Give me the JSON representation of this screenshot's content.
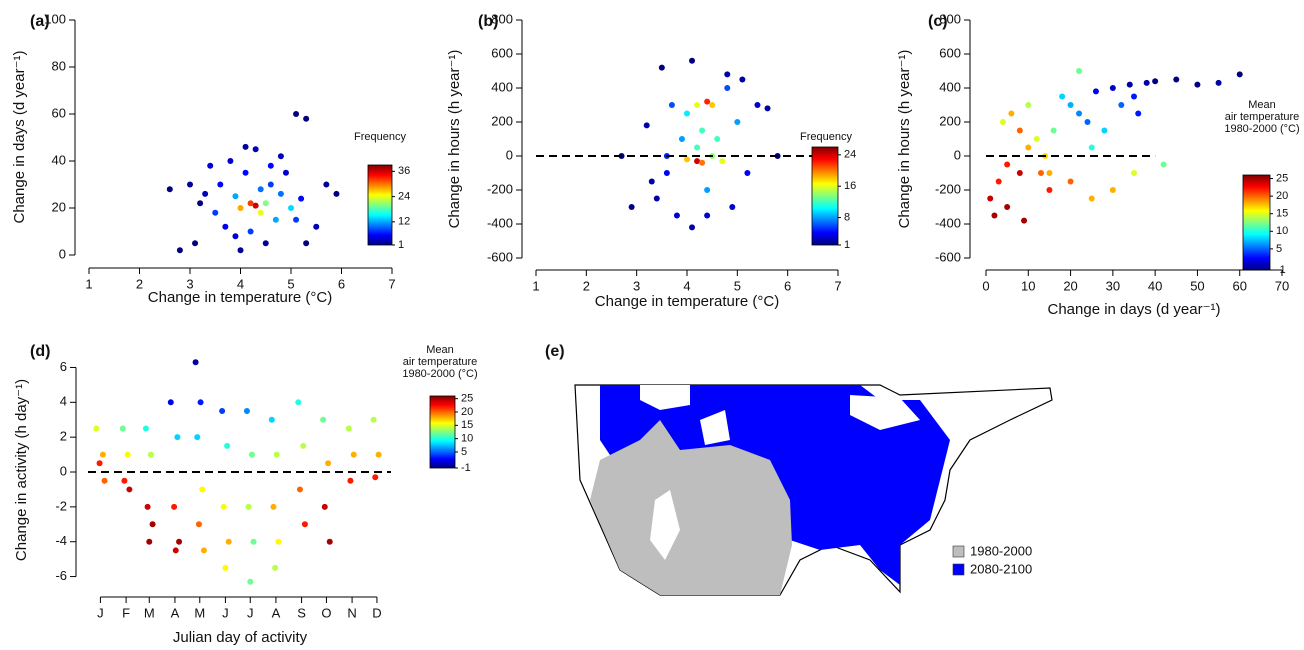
{
  "chart_data": [
    {
      "type": "scatter",
      "label": "(a)",
      "xlabel": "Change in temperature (°C)",
      "ylabel": "Change in days (d year⁻¹)",
      "xlim": [
        1,
        7
      ],
      "xticks": [
        1,
        2,
        3,
        4,
        5,
        6,
        7
      ],
      "ylim": [
        0,
        100
      ],
      "yticks": [
        0,
        20,
        40,
        60,
        80,
        100
      ],
      "x": [
        2.6,
        2.8,
        3.0,
        3.1,
        3.3,
        3.4,
        3.5,
        3.6,
        3.7,
        3.8,
        3.9,
        4.0,
        4.0,
        4.1,
        4.2,
        4.2,
        4.3,
        4.3,
        4.4,
        4.4,
        4.5,
        4.5,
        4.6,
        4.7,
        4.8,
        4.9,
        5.0,
        5.1,
        5.2,
        5.3,
        5.5,
        5.7,
        5.9,
        4.1,
        3.9,
        4.6,
        5.1,
        3.2,
        4.8,
        5.3
      ],
      "values": [
        28,
        2,
        30,
        5,
        26,
        38,
        18,
        30,
        12,
        40,
        25,
        20,
        2,
        35,
        22,
        10,
        21,
        45,
        18,
        28,
        22,
        5,
        30,
        15,
        26,
        35,
        20,
        60,
        24,
        58,
        12,
        30,
        26,
        46,
        8,
        38,
        15,
        22,
        42,
        5
      ],
      "color_values": [
        1,
        1,
        2,
        1,
        3,
        4,
        8,
        6,
        5,
        4,
        12,
        28,
        2,
        6,
        32,
        8,
        36,
        3,
        24,
        10,
        20,
        2,
        8,
        12,
        10,
        4,
        14,
        1,
        6,
        1,
        3,
        2,
        1,
        2,
        4,
        6,
        8,
        1,
        3,
        1
      ],
      "colorbar": {
        "title": [
          "Frequency"
        ],
        "lim": [
          1,
          39
        ],
        "ticks": [
          1,
          12,
          24,
          36
        ]
      }
    },
    {
      "type": "scatter",
      "label": "(b)",
      "xlabel": "Change in temperature (°C)",
      "ylabel": "Change in hours (h year⁻¹)",
      "xlim": [
        1,
        7
      ],
      "xticks": [
        1,
        2,
        3,
        4,
        5,
        6,
        7
      ],
      "ylim": [
        -600,
        800
      ],
      "yticks": [
        -600,
        -400,
        -200,
        0,
        200,
        400,
        600,
        800
      ],
      "hline": 0,
      "x": [
        2.7,
        2.9,
        3.2,
        3.4,
        3.5,
        3.6,
        3.7,
        3.8,
        3.9,
        4.0,
        4.1,
        4.1,
        4.2,
        4.2,
        4.3,
        4.3,
        4.4,
        4.4,
        4.5,
        4.5,
        4.6,
        4.7,
        4.8,
        4.9,
        5.0,
        5.1,
        5.2,
        5.4,
        5.6,
        5.8,
        3.3,
        4.0,
        4.4,
        4.8,
        3.6,
        4.2
      ],
      "values": [
        0,
        -300,
        180,
        -250,
        520,
        -100,
        300,
        -350,
        100,
        -20,
        560,
        -420,
        300,
        -30,
        -40,
        150,
        320,
        -200,
        300,
        0,
        100,
        -30,
        400,
        -300,
        200,
        450,
        -100,
        300,
        280,
        0,
        -150,
        250,
        -350,
        480,
        0,
        50
      ],
      "color_values": [
        1,
        1,
        2,
        2,
        1,
        4,
        6,
        3,
        8,
        18,
        1,
        2,
        16,
        24,
        20,
        12,
        22,
        8,
        18,
        14,
        12,
        16,
        6,
        3,
        8,
        2,
        4,
        3,
        2,
        1,
        2,
        10,
        3,
        2,
        5,
        12
      ],
      "colorbar": {
        "title": [
          "Frequency"
        ],
        "lim": [
          1,
          26
        ],
        "ticks": [
          1,
          8,
          16,
          24
        ]
      }
    },
    {
      "type": "scatter",
      "label": "(c)",
      "xlabel": "Change in days (d year⁻¹)",
      "ylabel": "Change in hours (h year⁻¹)",
      "xlim": [
        0,
        70
      ],
      "xticks": [
        0,
        10,
        20,
        30,
        40,
        50,
        60,
        70
      ],
      "ylim": [
        -600,
        800
      ],
      "yticks": [
        -600,
        -400,
        -200,
        0,
        200,
        400,
        600,
        800
      ],
      "hline": 0,
      "x": [
        1,
        2,
        3,
        4,
        5,
        6,
        8,
        9,
        10,
        10,
        12,
        13,
        14,
        15,
        16,
        18,
        20,
        20,
        22,
        24,
        25,
        26,
        28,
        30,
        30,
        32,
        34,
        35,
        36,
        38,
        40,
        42,
        45,
        50,
        55,
        60,
        5,
        8,
        15,
        25,
        35,
        22
      ],
      "values": [
        -250,
        -350,
        -150,
        200,
        -300,
        250,
        -100,
        -380,
        300,
        50,
        100,
        -100,
        0,
        -200,
        150,
        350,
        -150,
        300,
        250,
        200,
        -250,
        380,
        150,
        -200,
        400,
        300,
        420,
        -100,
        250,
        430,
        440,
        -50,
        450,
        420,
        430,
        480,
        -50,
        150,
        -100,
        50,
        350,
        500
      ],
      "color_values": [
        24,
        25,
        22,
        15,
        25,
        18,
        24,
        25,
        14,
        18,
        15,
        20,
        17,
        22,
        12,
        8,
        20,
        7,
        6,
        5,
        18,
        2,
        8,
        18,
        1,
        5,
        0,
        15,
        3,
        0,
        -1,
        12,
        -1,
        -1,
        0,
        -1,
        22,
        20,
        18,
        10,
        3,
        12
      ],
      "colorbar": {
        "title": [
          "Mean",
          "air temperature",
          "1980-2000 (°C)"
        ],
        "lim": [
          -1,
          26
        ],
        "ticks": [
          -1,
          5,
          10,
          15,
          20,
          25
        ]
      }
    },
    {
      "type": "scatter",
      "label": "(d)",
      "xlabel": "Julian day of activity",
      "ylabel": "Change in activity (h day⁻¹)",
      "xlim": [
        0,
        366
      ],
      "xticks": [
        {
          "value": 15,
          "label": "J"
        },
        {
          "value": 46,
          "label": "F"
        },
        {
          "value": 74,
          "label": "M"
        },
        {
          "value": 105,
          "label": "A"
        },
        {
          "value": 135,
          "label": "M"
        },
        {
          "value": 166,
          "label": "J"
        },
        {
          "value": 196,
          "label": "J"
        },
        {
          "value": 227,
          "label": "A"
        },
        {
          "value": 258,
          "label": "S"
        },
        {
          "value": 288,
          "label": "O"
        },
        {
          "value": 319,
          "label": "N"
        },
        {
          "value": 349,
          "label": "D"
        }
      ],
      "ylim": [
        -7,
        6.6
      ],
      "yticks": [
        -6,
        -4,
        -2,
        0,
        2,
        4,
        6
      ],
      "hline": 0,
      "x": [
        10,
        18,
        14,
        20,
        42,
        48,
        44,
        50,
        70,
        76,
        72,
        78,
        74,
        100,
        108,
        104,
        110,
        106,
        130,
        136,
        132,
        138,
        134,
        140,
        162,
        168,
        164,
        170,
        166,
        192,
        198,
        194,
        200,
        196,
        222,
        228,
        224,
        230,
        226,
        254,
        260,
        256,
        262,
        284,
        290,
        286,
        292,
        315,
        321,
        317,
        345,
        351,
        347
      ],
      "values": [
        2.5,
        1,
        0.5,
        -0.5,
        2.5,
        1,
        -0.5,
        -1,
        2.5,
        1,
        -2,
        -3,
        -4,
        4,
        2,
        -2,
        -4,
        -4.5,
        6.3,
        4,
        2,
        -1,
        -3,
        -4.5,
        3.5,
        1.5,
        -2,
        -4,
        -5.5,
        3.5,
        1,
        -2,
        -4,
        -6.3,
        3,
        1,
        -2,
        -4,
        -5.5,
        4,
        1.5,
        -1,
        -3,
        3,
        0.5,
        -2,
        -4,
        2.5,
        1,
        -0.5,
        3,
        1,
        -0.3
      ],
      "color_values": [
        15,
        18,
        22,
        20,
        12,
        16,
        22,
        24,
        10,
        14,
        24,
        25,
        25,
        2,
        8,
        22,
        25,
        24,
        0,
        3,
        8,
        16,
        20,
        18,
        4,
        10,
        16,
        18,
        16,
        6,
        12,
        14,
        12,
        12,
        8,
        14,
        18,
        16,
        14,
        10,
        14,
        20,
        22,
        12,
        18,
        24,
        25,
        14,
        18,
        22,
        14,
        18,
        22
      ],
      "colorbar": {
        "title": [
          "Mean",
          "air temperature",
          "1980-2000 (°C)"
        ],
        "lim": [
          -1,
          26
        ],
        "ticks": [
          -1,
          5,
          10,
          15,
          20,
          25
        ]
      }
    },
    {
      "type": "map",
      "label": "(e)",
      "legend": [
        {
          "name": "1980-2000",
          "color": "#bebebe"
        },
        {
          "name": "2080-2100",
          "color": "#0000ff"
        }
      ]
    }
  ]
}
